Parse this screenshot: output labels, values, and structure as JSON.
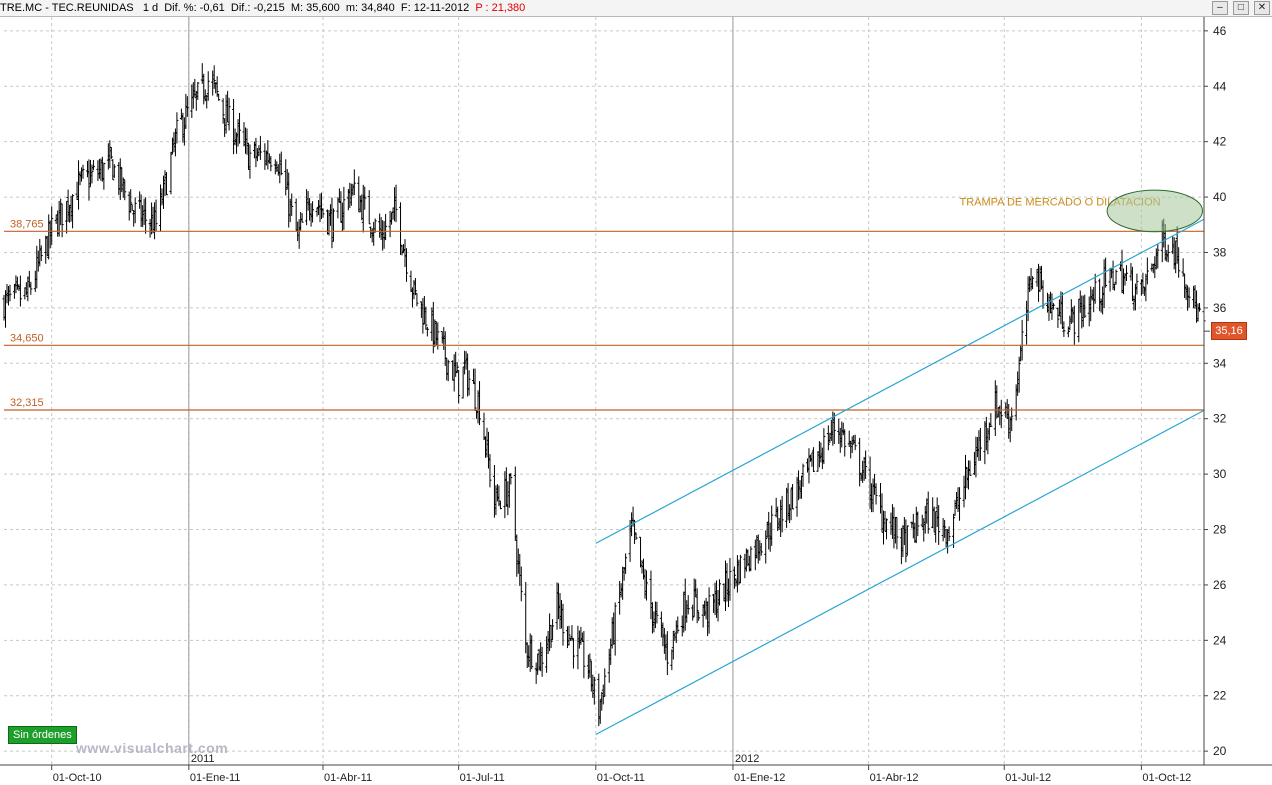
{
  "header": {
    "ticker": "TRE.MC - TEC.REUNIDAS",
    "timeframe": "1 d",
    "dif_pct": "Dif. %: -0,61",
    "dif": "Dif.: -0,215",
    "max": "M: 35,600",
    "min": "m: 34,840",
    "date": "F: 12-11-2012",
    "price_label": "P : 21,380",
    "min_btn": "–",
    "max_btn": "□",
    "close_btn": "✕"
  },
  "badge": {
    "label": "Sin órdenes"
  },
  "watermark": {
    "text": "www.visualchart.com"
  },
  "last_price": {
    "label": "35,16",
    "value": 35.16
  },
  "colors": {
    "bars": "#000000",
    "support_lines": "#c0602a",
    "channel_lines": "#2aa5d5",
    "annotation": "#c98a1a",
    "ellipse": "#2e6b2e",
    "grid": "#c8c8c8"
  },
  "chart_data": {
    "type": "ohlc",
    "y_axis": {
      "position": "right",
      "range": [
        19.5,
        46.5
      ],
      "ticks": [
        "46",
        "44",
        "42",
        "40",
        "38",
        "36",
        "34",
        "32",
        "30",
        "28",
        "26",
        "24",
        "22",
        "20"
      ]
    },
    "x_axis": {
      "range": [
        "2010-08-30",
        "2012-11-12"
      ],
      "tick_labels": [
        {
          "label": "01-Oct-10",
          "date": "2010-10-01"
        },
        {
          "label": "01-Ene-11",
          "date": "2011-01-01"
        },
        {
          "label": "01-Abr-11",
          "date": "2011-04-01"
        },
        {
          "label": "01-Jul-11",
          "date": "2011-07-01"
        },
        {
          "label": "01-Oct-11",
          "date": "2011-10-01"
        },
        {
          "label": "01-Ene-12",
          "date": "2012-01-01"
        },
        {
          "label": "01-Abr-12",
          "date": "2012-04-01"
        },
        {
          "label": "01-Jul-12",
          "date": "2012-07-01"
        },
        {
          "label": "01-Oct-12",
          "date": "2012-10-01"
        }
      ],
      "year_labels": [
        {
          "label": "2011",
          "date": "2011-01-01"
        },
        {
          "label": "2012",
          "date": "2012-01-01"
        }
      ]
    },
    "grid": true,
    "price_path": [
      [
        "2010-08-30",
        36.2
      ],
      [
        "2010-09-15",
        36.5
      ],
      [
        "2010-10-01",
        38.8
      ],
      [
        "2010-10-20",
        40.5
      ],
      [
        "2010-11-10",
        41.2
      ],
      [
        "2010-11-25",
        39.5
      ],
      [
        "2010-12-10",
        39.0
      ],
      [
        "2010-12-25",
        42.5
      ],
      [
        "2011-01-15",
        44.3
      ],
      [
        "2011-01-25",
        43.0
      ],
      [
        "2011-02-10",
        41.5
      ],
      [
        "2011-03-01",
        41.5
      ],
      [
        "2011-03-15",
        38.5
      ],
      [
        "2011-03-25",
        40.0
      ],
      [
        "2011-04-08",
        39.0
      ],
      [
        "2011-04-20",
        40.3
      ],
      [
        "2011-05-10",
        38.6
      ],
      [
        "2011-05-20",
        39.5
      ],
      [
        "2011-06-01",
        36.5
      ],
      [
        "2011-06-20",
        34.5
      ],
      [
        "2011-07-01",
        33.3
      ],
      [
        "2011-07-05",
        33.8
      ],
      [
        "2011-07-15",
        32.5
      ],
      [
        "2011-07-25",
        29.0
      ],
      [
        "2011-08-05",
        29.5
      ],
      [
        "2011-08-15",
        23.8
      ],
      [
        "2011-08-25",
        23.3
      ],
      [
        "2011-09-05",
        25.2
      ],
      [
        "2011-09-15",
        24.0
      ],
      [
        "2011-09-25",
        23.2
      ],
      [
        "2011-10-03",
        21.5
      ],
      [
        "2011-10-15",
        25.0
      ],
      [
        "2011-10-25",
        28.0
      ],
      [
        "2011-11-05",
        25.5
      ],
      [
        "2011-11-18",
        23.5
      ],
      [
        "2011-12-01",
        25.5
      ],
      [
        "2011-12-15",
        25.0
      ],
      [
        "2012-01-01",
        26.3
      ],
      [
        "2012-01-15",
        27.3
      ],
      [
        "2012-02-01",
        28.5
      ],
      [
        "2012-02-20",
        30.0
      ],
      [
        "2012-03-10",
        31.8
      ],
      [
        "2012-03-25",
        30.5
      ],
      [
        "2012-04-10",
        28.5
      ],
      [
        "2012-04-25",
        27.5
      ],
      [
        "2012-05-10",
        28.5
      ],
      [
        "2012-05-25",
        28.0
      ],
      [
        "2012-06-10",
        30.5
      ],
      [
        "2012-06-25",
        32.5
      ],
      [
        "2012-07-05",
        32.0
      ],
      [
        "2012-07-10",
        33.5
      ],
      [
        "2012-07-20",
        37.5
      ],
      [
        "2012-08-01",
        36.0
      ],
      [
        "2012-08-15",
        35.5
      ],
      [
        "2012-09-01",
        36.5
      ],
      [
        "2012-09-15",
        37.3
      ],
      [
        "2012-10-01",
        36.5
      ],
      [
        "2012-10-15",
        38.5
      ],
      [
        "2012-10-25",
        38.0
      ],
      [
        "2012-11-05",
        36.2
      ],
      [
        "2012-11-12",
        35.2
      ]
    ],
    "horizontal_lines": [
      {
        "label": "38,765",
        "value": 38.765
      },
      {
        "label": "34,650",
        "value": 34.65
      },
      {
        "label": "32,315",
        "value": 32.315
      }
    ],
    "channel_lines": [
      {
        "from": [
          "2011-10-01",
          27.5
        ],
        "to": [
          "2012-11-12",
          39.2
        ]
      },
      {
        "from": [
          "2011-10-01",
          20.6
        ],
        "to": [
          "2012-11-12",
          32.3
        ]
      }
    ],
    "annotation": {
      "text": "TRAMPA DE MERCADO O DILATACION",
      "at": [
        "2012-06-01",
        39.7
      ],
      "ellipse_center": [
        "2012-10-10",
        39.5
      ],
      "ellipse_radii": {
        "days": 32,
        "price": 0.75
      }
    }
  }
}
